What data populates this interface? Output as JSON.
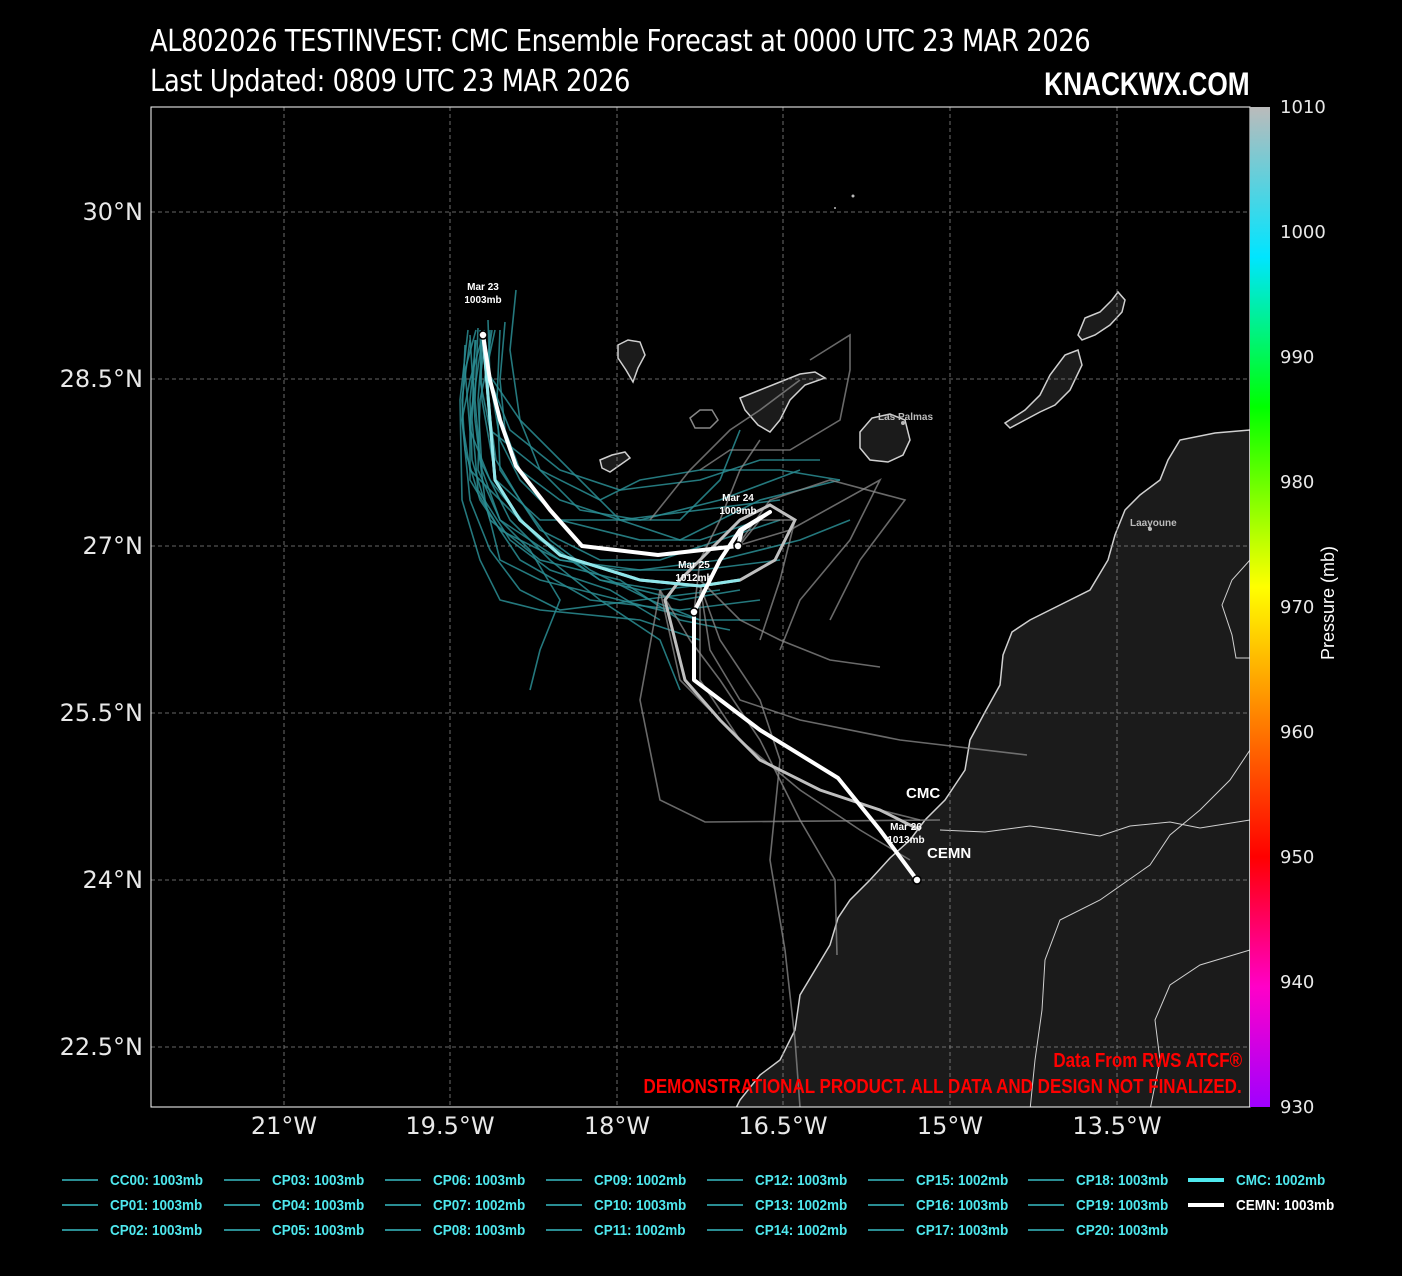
{
  "header": {
    "title_line1": "AL802026 TESTINVEST: CMC Ensemble Forecast at 0000 UTC 23 MAR 2026",
    "title_line2": "Last Updated: 0809 UTC 23 MAR 2026",
    "brand": "KNACKWX.COM"
  },
  "map": {
    "lat_labels": [
      "30°N",
      "28.5°N",
      "27°N",
      "25.5°N",
      "24°N",
      "22.5°N"
    ],
    "lon_labels": [
      "21°W",
      "19.5°W",
      "18°W",
      "16.5°W",
      "15°W",
      "13.5°W"
    ],
    "place_labels": [
      "Las Palmas",
      "Laayoune"
    ],
    "track_labels": {
      "cmc": "CMC",
      "cemn": "CEMN",
      "mar23": [
        "Mar 23",
        "1003mb"
      ],
      "mar24": [
        "Mar 24",
        "1009mb"
      ],
      "mar25": [
        "Mar 25",
        "1012mb"
      ],
      "mar26": [
        "Mar 26",
        "1013mb"
      ]
    },
    "colors": {
      "ensemble": "#2a8d93",
      "cemn": "#ffffff",
      "cmc": "#4fe8ee",
      "land": "#1b1b1b",
      "grid": "#888888"
    }
  },
  "colorbar": {
    "title": "Pressure (mb)",
    "ticks": [
      "1010",
      "1000",
      "990",
      "980",
      "970",
      "960",
      "950",
      "940",
      "930"
    ]
  },
  "credits": {
    "line1": "Data From RWS ATCF®",
    "line2": "DEMONSTRATIONAL PRODUCT. ALL DATA AND DESIGN NOT FINALIZED."
  },
  "legend": [
    {
      "label": "CC00: 1003mb"
    },
    {
      "label": "CP01: 1003mb"
    },
    {
      "label": "CP02: 1003mb"
    },
    {
      "label": "CP03: 1003mb"
    },
    {
      "label": "CP04: 1003mb"
    },
    {
      "label": "CP05: 1003mb"
    },
    {
      "label": "CP06: 1003mb"
    },
    {
      "label": "CP07: 1002mb"
    },
    {
      "label": "CP08: 1003mb"
    },
    {
      "label": "CP09: 1002mb"
    },
    {
      "label": "CP10: 1003mb"
    },
    {
      "label": "CP11: 1002mb"
    },
    {
      "label": "CP12: 1003mb"
    },
    {
      "label": "CP13: 1002mb"
    },
    {
      "label": "CP14: 1002mb"
    },
    {
      "label": "CP15: 1002mb"
    },
    {
      "label": "CP16: 1003mb"
    },
    {
      "label": "CP17: 1003mb"
    },
    {
      "label": "CP18: 1003mb"
    },
    {
      "label": "CP19: 1003mb"
    },
    {
      "label": "CP20: 1003mb"
    },
    {
      "label": "CMC: 1002mb"
    },
    {
      "label": "CEMN: 1003mb"
    }
  ]
}
